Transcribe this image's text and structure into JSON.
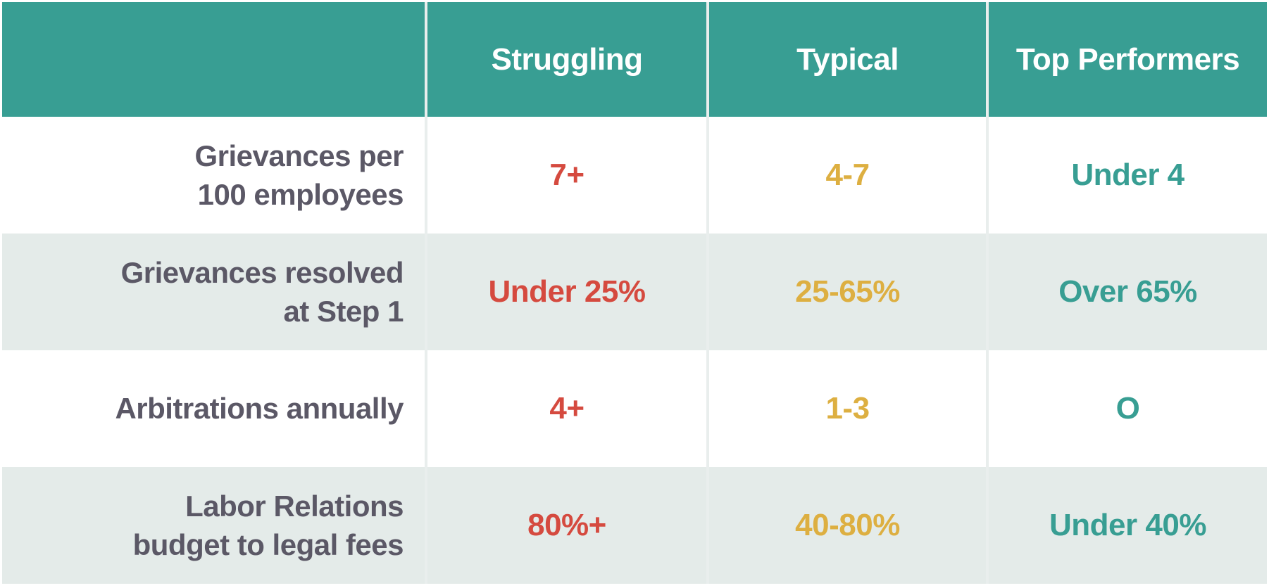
{
  "colors": {
    "header_bg": "#389E93",
    "header_text": "#FFFFFF",
    "row_bg": "#FFFFFF",
    "row_alt_bg": "#E4EBE9",
    "label_text": "#5B5866",
    "struggling_text": "#D54A3F",
    "typical_text": "#DDAF41",
    "top_text": "#389E93",
    "grid_line": "#E9EEED"
  },
  "chart_data": {
    "type": "table",
    "title": "",
    "columns": [
      "Struggling",
      "Typical",
      "Top Performers"
    ],
    "row_headers": [
      "Grievances per 100 employees",
      "Grievances resolved at Step 1",
      "Arbitrations annually",
      "Labor Relations budget to legal fees"
    ],
    "cells": [
      [
        "7+",
        "4-7",
        "Under 4"
      ],
      [
        "Under 25%",
        "25-65%",
        "Over 65%"
      ],
      [
        "4+",
        "1-3",
        "O"
      ],
      [
        "80%+",
        "40-80%",
        "Under 40%"
      ]
    ],
    "legend": "none",
    "layout": "alternating row shading, teal header band, color-coded value columns (red / gold / teal)"
  },
  "table": {
    "columns": [
      "",
      "Struggling",
      "Typical",
      "Top Performers"
    ],
    "rows": [
      {
        "label": [
          "Grievances per",
          "100 employees"
        ],
        "values": [
          "7+",
          "4-7",
          "Under 4"
        ]
      },
      {
        "label": [
          "Grievances resolved",
          "at Step 1"
        ],
        "values": [
          "Under 25%",
          "25-65%",
          "Over 65%"
        ]
      },
      {
        "label": [
          "Arbitrations annually"
        ],
        "values": [
          "4+",
          "1-3",
          "O"
        ]
      },
      {
        "label": [
          "Labor Relations",
          "budget to legal fees"
        ],
        "values": [
          "80%+",
          "40-80%",
          "Under 40%"
        ]
      }
    ]
  }
}
